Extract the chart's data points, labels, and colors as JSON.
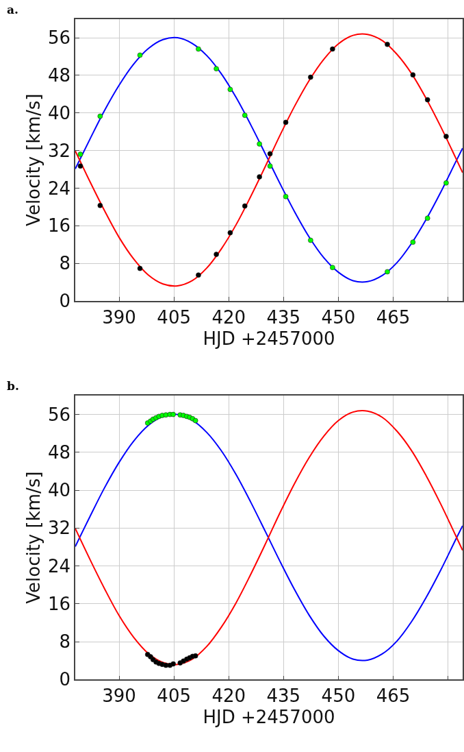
{
  "chart_data": [
    {
      "type": "line",
      "title": "a.",
      "xlabel": "HJD +2457000",
      "ylabel": "Velocity [km/s]",
      "xlim": [
        378,
        484
      ],
      "ylim": [
        0,
        60
      ],
      "xticks": [
        390,
        405,
        420,
        435,
        450,
        465,
        {
          "value": 480,
          "label": null
        }
      ],
      "yticks": [
        0,
        8,
        16,
        24,
        32,
        40,
        48,
        56
      ],
      "grid": true,
      "series": [
        {
          "color": "#0000ff",
          "x": [
            378,
            382,
            386,
            390,
            394,
            398,
            402,
            406,
            410,
            414,
            418,
            422,
            426,
            430,
            434,
            438,
            442,
            446,
            450,
            454,
            458,
            462,
            466,
            470,
            474,
            478,
            482,
            484
          ],
          "values": [
            28.1,
            34.4,
            40.5,
            45.9,
            50.4,
            53.7,
            55.6,
            56.0,
            54.8,
            52.2,
            48.3,
            43.3,
            37.5,
            31.3,
            25.0,
            19.0,
            13.6,
            9.2,
            6.1,
            4.3,
            4.1,
            5.4,
            8.1,
            12.2,
            17.3,
            23.1,
            29.4,
            32.5
          ]
        },
        {
          "color": "#ff0000",
          "x": [
            378,
            382,
            386,
            390,
            394,
            398,
            402,
            406,
            410,
            414,
            418,
            422,
            426,
            430,
            434,
            438,
            442,
            446,
            450,
            454,
            458,
            462,
            466,
            470,
            474,
            478,
            482,
            484
          ],
          "values": [
            31.9,
            25.4,
            19.2,
            13.5,
            8.9,
            5.5,
            3.6,
            3.2,
            4.3,
            7.0,
            11.1,
            16.2,
            22.2,
            28.6,
            35.2,
            41.4,
            46.9,
            51.4,
            54.7,
            56.5,
            56.7,
            55.4,
            52.5,
            48.4,
            43.1,
            37.1,
            30.6,
            27.3
          ]
        },
        {
          "type": "scatter",
          "marker": "circle",
          "color": "#00ff00",
          "x": [
            379.4,
            384.8,
            395.7,
            411.7,
            416.6,
            420.4,
            424.4,
            428.4,
            431.3,
            435.6,
            442.4,
            448.4,
            463.4,
            470.4,
            474.4,
            479.5
          ],
          "values": [
            31.2,
            39.3,
            52.3,
            53.6,
            49.4,
            45.0,
            39.5,
            33.4,
            28.7,
            22.2,
            12.9,
            7.1,
            6.2,
            12.5,
            17.6,
            25.1
          ]
        },
        {
          "type": "scatter",
          "marker": "circle",
          "color": "#000000",
          "x": [
            379.4,
            384.8,
            395.7,
            411.7,
            416.6,
            420.4,
            424.4,
            428.4,
            431.3,
            435.6,
            442.4,
            448.4,
            463.4,
            470.4,
            474.4,
            479.5
          ],
          "values": [
            28.7,
            20.3,
            6.9,
            5.5,
            9.9,
            14.5,
            20.2,
            26.4,
            31.3,
            38.0,
            47.6,
            53.6,
            54.6,
            48.1,
            42.8,
            35.0
          ]
        }
      ]
    },
    {
      "type": "line",
      "title": "b.",
      "xlabel": "HJD +2457000",
      "ylabel": "Velocity [km/s]",
      "xlim": [
        378,
        484
      ],
      "ylim": [
        0,
        60
      ],
      "xticks": [
        390,
        405,
        420,
        435,
        450,
        465,
        {
          "value": 480,
          "label": null
        }
      ],
      "yticks": [
        0,
        8,
        16,
        24,
        32,
        40,
        48,
        56
      ],
      "grid": true,
      "series": [
        {
          "color": "#0000ff",
          "x": [
            378,
            382,
            386,
            390,
            394,
            398,
            402,
            406,
            410,
            414,
            418,
            422,
            426,
            430,
            434,
            438,
            442,
            446,
            450,
            454,
            458,
            462,
            466,
            470,
            474,
            478,
            482,
            484
          ],
          "values": [
            28.1,
            34.4,
            40.5,
            45.9,
            50.4,
            53.7,
            55.6,
            56.0,
            54.8,
            52.2,
            48.3,
            43.3,
            37.5,
            31.3,
            25.0,
            19.0,
            13.6,
            9.2,
            6.1,
            4.3,
            4.1,
            5.4,
            8.1,
            12.2,
            17.3,
            23.1,
            29.4,
            32.5
          ]
        },
        {
          "color": "#ff0000",
          "x": [
            378,
            382,
            386,
            390,
            394,
            398,
            402,
            406,
            410,
            414,
            418,
            422,
            426,
            430,
            434,
            438,
            442,
            446,
            450,
            454,
            458,
            462,
            466,
            470,
            474,
            478,
            482,
            484
          ],
          "values": [
            31.9,
            25.4,
            19.2,
            13.5,
            8.9,
            5.5,
            3.6,
            3.2,
            4.3,
            7.0,
            11.1,
            16.2,
            22.2,
            28.6,
            35.2,
            41.4,
            46.9,
            51.4,
            54.7,
            56.5,
            56.7,
            55.4,
            52.5,
            48.4,
            43.1,
            37.1,
            30.6,
            27.3
          ]
        },
        {
          "type": "scatter",
          "marker": "circle",
          "color": "#00ff00",
          "x": [
            397.8,
            398.6,
            399.3,
            400.1,
            400.9,
            401.8,
            402.8,
            403.9,
            404.8,
            406.7,
            407.6,
            408.5,
            409.3,
            410.1,
            410.9
          ],
          "values": [
            54.2,
            54.6,
            55.0,
            55.3,
            55.6,
            55.8,
            55.9,
            56.0,
            56.0,
            55.9,
            55.8,
            55.6,
            55.4,
            55.1,
            54.7
          ]
        },
        {
          "type": "scatter",
          "marker": "circle",
          "color": "#000000",
          "x": [
            397.8,
            398.6,
            399.3,
            400.1,
            400.9,
            401.8,
            402.8,
            403.9,
            404.8,
            406.7,
            407.6,
            408.5,
            409.3,
            410.1,
            410.9
          ],
          "values": [
            5.3,
            4.8,
            4.2,
            3.7,
            3.4,
            3.2,
            3.0,
            3.0,
            3.3,
            3.5,
            3.9,
            4.3,
            4.6,
            4.9,
            5.0
          ]
        }
      ]
    }
  ]
}
